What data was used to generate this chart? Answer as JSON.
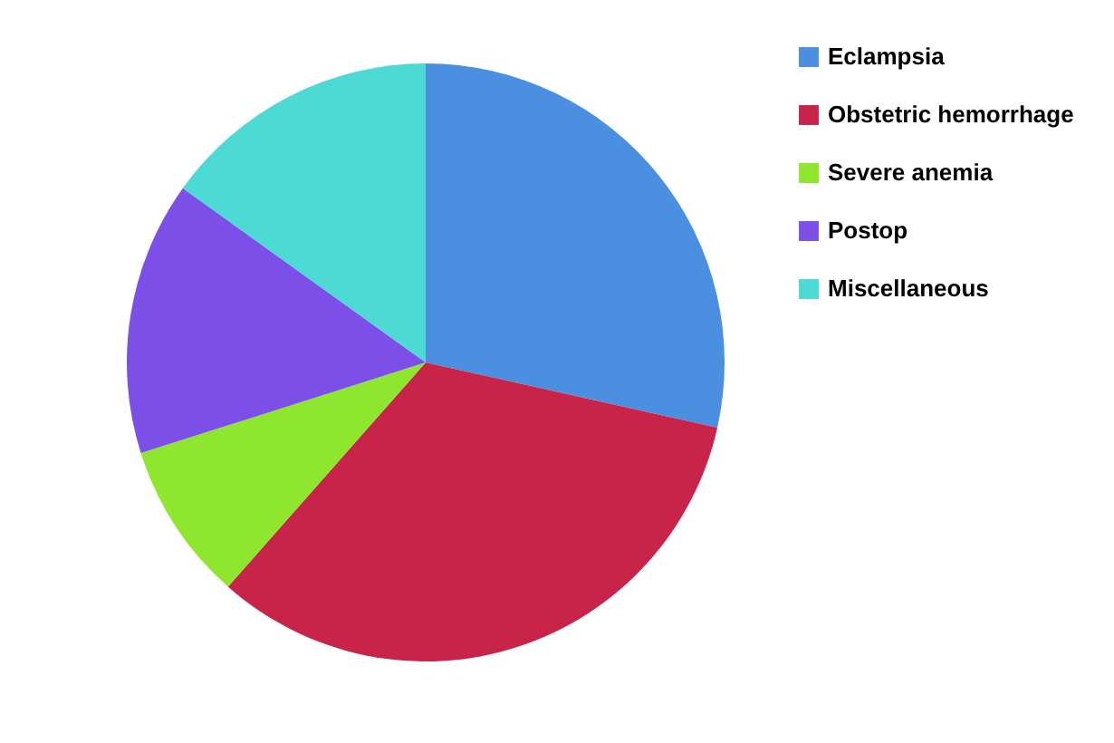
{
  "chart_data": {
    "type": "pie",
    "categories": [
      "Eclampsia",
      "Obstetric hemorrhage",
      "Severe anemia",
      "Postop",
      "Miscellaneous"
    ],
    "values": [
      28.5,
      33,
      8.6,
      14.8,
      15.1
    ],
    "colors": [
      "#4a8fe0",
      "#c8244a",
      "#8ee62e",
      "#7b4fe8",
      "#4dd9d4"
    ],
    "legend": "right"
  }
}
